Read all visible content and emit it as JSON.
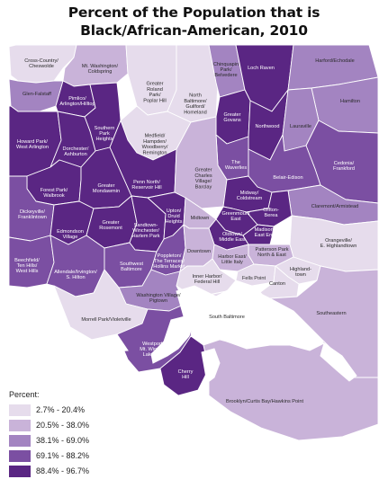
{
  "title": {
    "line1": "Percent of the Population that is",
    "line2": "Black/African-American, 2010"
  },
  "colors": {
    "c1": "#e6dcec",
    "c2": "#c9b3d9",
    "c3": "#a384c1",
    "c4": "#7b4fa2",
    "c5": "#5a2683",
    "water": "#ffffff",
    "border": "#ffffff"
  },
  "legend": {
    "title": "Percent:",
    "classes": [
      {
        "label": "2.7% - 20.4%",
        "color": "#e6dcec"
      },
      {
        "label": "20.5% - 38.0%",
        "color": "#c9b3d9"
      },
      {
        "label": "38.1% - 69.0%",
        "color": "#a384c1"
      },
      {
        "label": "69.1% - 88.2%",
        "color": "#7b4fa2"
      },
      {
        "label": "88.4% - 96.7%",
        "color": "#5a2683"
      }
    ]
  },
  "neighborhoods": [
    {
      "id": "cross-country",
      "lines": [
        "Cross-Country/",
        "Cheswolde"
      ],
      "class": 1
    },
    {
      "id": "mt-washington",
      "lines": [
        "Mt. Washington/",
        "Coldspring"
      ],
      "class": 2
    },
    {
      "id": "greater-roland-park",
      "lines": [
        "Greater",
        "Roland",
        "Park/",
        "Poplar Hill"
      ],
      "class": 1
    },
    {
      "id": "north-baltimore",
      "lines": [
        "North",
        "Baltimore/",
        "Guilford/",
        "Homeland"
      ],
      "class": 1
    },
    {
      "id": "chinquapin-park",
      "lines": [
        "Chinquapin",
        "Park/",
        "Belvedere"
      ],
      "class": 3
    },
    {
      "id": "loch-raven",
      "lines": [
        "Loch Raven"
      ],
      "class": 5
    },
    {
      "id": "harford-echodale",
      "lines": [
        "Harford/Echodale"
      ],
      "class": 3
    },
    {
      "id": "glen-falstaff",
      "lines": [
        "Glen-Falstaff"
      ],
      "class": 3
    },
    {
      "id": "pimlico",
      "lines": [
        "Pimlico/",
        "Arlington/Hilltop"
      ],
      "class": 5
    },
    {
      "id": "hamilton",
      "lines": [
        "Hamilton"
      ],
      "class": 3
    },
    {
      "id": "southern-park-heights",
      "lines": [
        "Southern",
        "Park",
        "Heights"
      ],
      "class": 5
    },
    {
      "id": "greater-govans",
      "lines": [
        "Greater",
        "Govans"
      ],
      "class": 5
    },
    {
      "id": "northwood",
      "lines": [
        "Northwood"
      ],
      "class": 5
    },
    {
      "id": "lauraville",
      "lines": [
        "Lauraville"
      ],
      "class": 3
    },
    {
      "id": "howard-park",
      "lines": [
        "Howard Park/",
        "West Arlington"
      ],
      "class": 5
    },
    {
      "id": "dorchester",
      "lines": [
        "Dorchester/",
        "Ashburton"
      ],
      "class": 5
    },
    {
      "id": "medfield",
      "lines": [
        "Medfield/",
        "Hampden/",
        "Woodberry/",
        "Remington"
      ],
      "class": 1
    },
    {
      "id": "cedonia",
      "lines": [
        "Cedonia/",
        "Frankford"
      ],
      "class": 4
    },
    {
      "id": "the-waverlies",
      "lines": [
        "The",
        "Waverlies"
      ],
      "class": 4
    },
    {
      "id": "belair-edison",
      "lines": [
        "Belair-Edison"
      ],
      "class": 4
    },
    {
      "id": "penn-north",
      "lines": [
        "Penn North/",
        "Reservoir Hill"
      ],
      "class": 5
    },
    {
      "id": "greater-charles-village",
      "lines": [
        "Greater",
        "Charles",
        "Village/",
        "Barclay"
      ],
      "class": 2
    },
    {
      "id": "forest-park",
      "lines": [
        "Forest Park/",
        "Walbrook"
      ],
      "class": 5
    },
    {
      "id": "greater-mondawmin",
      "lines": [
        "Greater",
        "Mondawmin"
      ],
      "class": 5
    },
    {
      "id": "midway-coldstream",
      "lines": [
        "Midway/",
        "Coldstream"
      ],
      "class": 5
    },
    {
      "id": "claremont-armistead",
      "lines": [
        "Claremont/Armistead"
      ],
      "class": 3
    },
    {
      "id": "dickeyville",
      "lines": [
        "Dickeyville/",
        "Franklintown"
      ],
      "class": 4
    },
    {
      "id": "greenmount-east",
      "lines": [
        "Greenmount",
        "East"
      ],
      "class": 5
    },
    {
      "id": "clifton-berea",
      "lines": [
        "Clifton-",
        "Berea"
      ],
      "class": 5
    },
    {
      "id": "edmondson-village",
      "lines": [
        "Edmondson",
        "Village"
      ],
      "class": 5
    },
    {
      "id": "greater-rosemont",
      "lines": [
        "Greater",
        "Rosemont"
      ],
      "class": 5
    },
    {
      "id": "sandtown",
      "lines": [
        "Sandtown-",
        "Winchester/",
        "Harlem Park"
      ],
      "class": 5
    },
    {
      "id": "upton-druid",
      "lines": [
        "Upton/",
        "Druid",
        "Heights"
      ],
      "class": 5
    },
    {
      "id": "midtown",
      "lines": [
        "Midtown"
      ],
      "class": 2
    },
    {
      "id": "oldtown",
      "lines": [
        "Oldtown/",
        "Middle East"
      ],
      "class": 5
    },
    {
      "id": "madison-east-end",
      "lines": [
        "Madison/",
        "East End"
      ],
      "class": 5
    },
    {
      "id": "beechfield",
      "lines": [
        "Beechfield/",
        "Ten Hills/",
        "West Hills"
      ],
      "class": 4
    },
    {
      "id": "allendale",
      "lines": [
        "Allendale/Irvington/",
        "S. Hilton"
      ],
      "class": 4
    },
    {
      "id": "southwest-baltimore",
      "lines": [
        "Southwest",
        "Baltimore"
      ],
      "class": 4
    },
    {
      "id": "poppleton",
      "lines": [
        "Poppleton/",
        "The Terraces/",
        "Hollins Market"
      ],
      "class": 4
    },
    {
      "id": "downtown",
      "lines": [
        "Downtown"
      ],
      "class": 2
    },
    {
      "id": "patterson-park",
      "lines": [
        "Patterson Park",
        "North & East"
      ],
      "class": 2
    },
    {
      "id": "orangeville",
      "lines": [
        "Orangeville/",
        "E. Highlandtown"
      ],
      "class": 1
    },
    {
      "id": "harbor-east",
      "lines": [
        "Harbor East/",
        "Little Italy"
      ],
      "class": 2
    },
    {
      "id": "highlandtown",
      "lines": [
        "Highland-",
        "town"
      ],
      "class": 1
    },
    {
      "id": "fells-point",
      "lines": [
        "Fells Point"
      ],
      "class": 1
    },
    {
      "id": "canton",
      "lines": [
        "Canton"
      ],
      "class": 1
    },
    {
      "id": "inner-harbor",
      "lines": [
        "Inner Harbor/",
        "Federal Hill"
      ],
      "class": 1
    },
    {
      "id": "washington-village",
      "lines": [
        "Washington Village/",
        "Pigtown"
      ],
      "class": 3
    },
    {
      "id": "morrell-park",
      "lines": [
        "Morrell Park/Violetville"
      ],
      "class": 1
    },
    {
      "id": "south-baltimore",
      "lines": [
        "South Baltimore"
      ],
      "class": 1
    },
    {
      "id": "southeastern",
      "lines": [
        "Southeastern"
      ],
      "class": 2
    },
    {
      "id": "westport",
      "lines": [
        "Westport/",
        "Mt. Winans/",
        "Lakeland"
      ],
      "class": 4
    },
    {
      "id": "cherry-hill",
      "lines": [
        "Cherry",
        "Hill"
      ],
      "class": 5
    },
    {
      "id": "brooklyn",
      "lines": [
        "Brooklyn/Curtis Bay/Hawkins Point"
      ],
      "class": 2
    }
  ]
}
